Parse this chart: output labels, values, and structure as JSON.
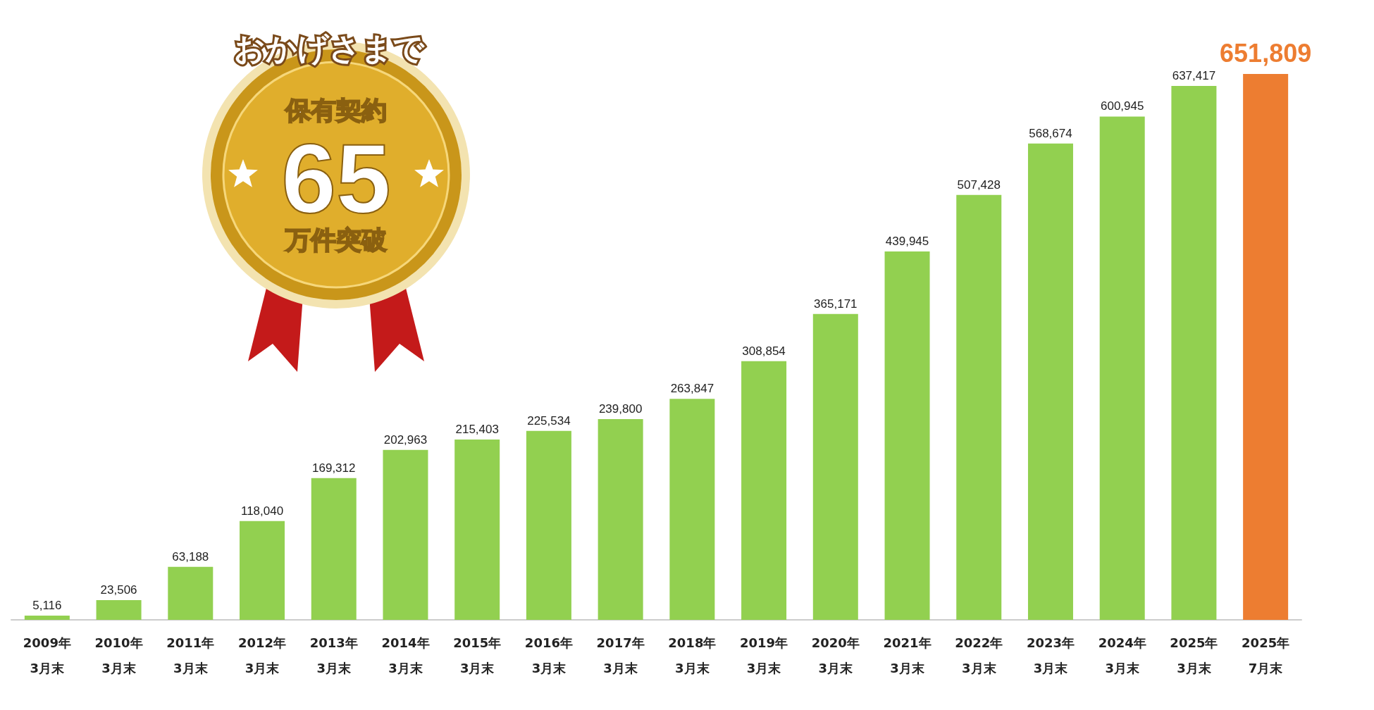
{
  "chart_data": {
    "type": "bar",
    "categories": [
      "2009年\n3月末",
      "2010年\n3月末",
      "2011年\n3月末",
      "2012年\n3月末",
      "2013年\n3月末",
      "2014年\n3月末",
      "2015年\n3月末",
      "2016年\n3月末",
      "2017年\n3月末",
      "2018年\n3月末",
      "2019年\n3月末",
      "2020年\n3月末",
      "2021年\n3月末",
      "2022年\n3月末",
      "2023年\n3月末",
      "2024年\n3月末",
      "2025年\n3月末",
      "2025年\n7月末"
    ],
    "values": [
      5116,
      23506,
      63188,
      118040,
      169312,
      202963,
      215403,
      225534,
      239800,
      263847,
      308854,
      365171,
      439945,
      507428,
      568674,
      600945,
      637417,
      651809
    ],
    "value_labels": [
      "5,116",
      "23,506",
      "63,188",
      "118,040",
      "169,312",
      "202,963",
      "215,403",
      "225,534",
      "239,800",
      "263,847",
      "308,854",
      "365,171",
      "439,945",
      "507,428",
      "568,674",
      "600,945",
      "637,417",
      "651,809"
    ],
    "colors": [
      "#92d050",
      "#92d050",
      "#92d050",
      "#92d050",
      "#92d050",
      "#92d050",
      "#92d050",
      "#92d050",
      "#92d050",
      "#92d050",
      "#92d050",
      "#92d050",
      "#92d050",
      "#92d050",
      "#92d050",
      "#92d050",
      "#92d050",
      "#ed7d31"
    ],
    "grid": false,
    "annotations": [
      "おかげさまで",
      "保有契約",
      "65",
      "万件突破"
    ]
  }
}
